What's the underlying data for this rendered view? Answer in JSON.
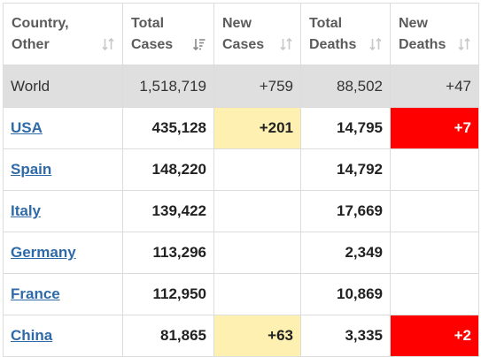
{
  "headers": [
    {
      "line1": "Country,",
      "line2": "Other",
      "sort_icon": "sort-both-icon"
    },
    {
      "line1": "Total",
      "line2": "Cases",
      "sort_icon": "sort-desc-icon"
    },
    {
      "line1": "New",
      "line2": "Cases",
      "sort_icon": "sort-both-icon"
    },
    {
      "line1": "Total",
      "line2": "Deaths",
      "sort_icon": "sort-both-icon"
    },
    {
      "line1": "New",
      "line2": "Deaths",
      "sort_icon": "sort-both-icon"
    }
  ],
  "world": {
    "name": "World",
    "total_cases": "1,518,719",
    "new_cases": "+759",
    "total_deaths": "88,502",
    "new_deaths": "+47"
  },
  "rows": [
    {
      "name": "USA",
      "total_cases": "435,128",
      "new_cases": "+201",
      "total_deaths": "14,795",
      "new_deaths": "+7"
    },
    {
      "name": "Spain",
      "total_cases": "148,220",
      "new_cases": "",
      "total_deaths": "14,792",
      "new_deaths": ""
    },
    {
      "name": "Italy",
      "total_cases": "139,422",
      "new_cases": "",
      "total_deaths": "17,669",
      "new_deaths": ""
    },
    {
      "name": "Germany",
      "total_cases": "113,296",
      "new_cases": "",
      "total_deaths": "2,349",
      "new_deaths": ""
    },
    {
      "name": "France",
      "total_cases": "112,950",
      "new_cases": "",
      "total_deaths": "10,869",
      "new_deaths": ""
    },
    {
      "name": "China",
      "total_cases": "81,865",
      "new_cases": "+63",
      "total_deaths": "3,335",
      "new_deaths": "+2"
    }
  ],
  "colors": {
    "new_cases_highlight": "#fdf0b0",
    "new_deaths_highlight": "#ff0000",
    "link": "#2f6aa8",
    "world_row_bg": "#dfdfdf",
    "sort_icon": "#c8c8c8",
    "sort_icon_active": "#8a8a8a"
  }
}
